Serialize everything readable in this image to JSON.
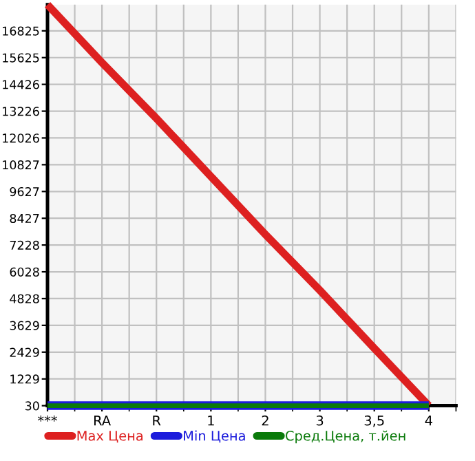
{
  "chart_data": {
    "type": "line",
    "categories": [
      "***",
      "RA",
      "R",
      "1",
      "2",
      "3",
      "3,5",
      "4"
    ],
    "series": [
      {
        "name": "Max Цена",
        "color": "#dd2020",
        "values": [
          18000,
          15400,
          12900,
          10300,
          7700,
          5200,
          2600,
          30
        ]
      },
      {
        "name": "Min Цена",
        "color": "#1c1cdc",
        "values": [
          30,
          30,
          30,
          30,
          30,
          30,
          30,
          30
        ]
      },
      {
        "name": "Сред.Цена, т.йен",
        "color": "#0a7a0a",
        "values": [
          30,
          30,
          30,
          30,
          30,
          30,
          30,
          30
        ]
      }
    ],
    "ylim": [
      30,
      18000
    ],
    "yticks": [
      30,
      1229,
      2429,
      3629,
      4828,
      6028,
      7228,
      8427,
      9627,
      10827,
      12026,
      13226,
      14426,
      15625,
      16825
    ],
    "grid": true,
    "legend": "bottom",
    "marker": "none",
    "line_style": "solid"
  }
}
